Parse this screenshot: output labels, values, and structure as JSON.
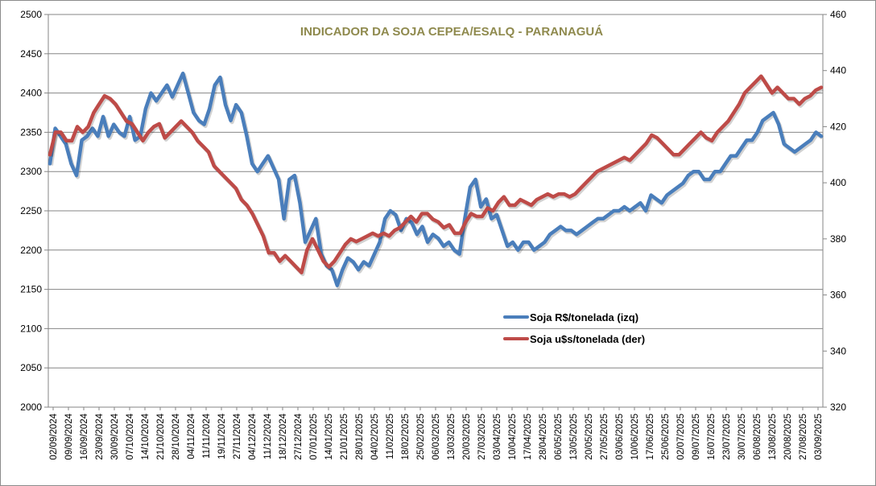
{
  "chart_data": {
    "type": "line",
    "title": "INDICADOR DA SOJA CEPEA/ESALQ - PARANAGUÁ",
    "title_color": "#8f8a4e",
    "y_left": {
      "min": 2000,
      "max": 2500,
      "ticks": [
        2000,
        2050,
        2100,
        2150,
        2200,
        2250,
        2300,
        2350,
        2400,
        2450,
        2500
      ]
    },
    "y_right": {
      "min": 320,
      "max": 460,
      "ticks": [
        320,
        340,
        360,
        380,
        400,
        420,
        440,
        460
      ]
    },
    "grid": "horizontal",
    "legend_position": "center-right",
    "x_tick_labels": [
      "02/09/2024",
      "09/09/2024",
      "16/09/2024",
      "23/09/2024",
      "30/09/2024",
      "07/10/2024",
      "14/10/2024",
      "21/10/2024",
      "28/10/2024",
      "04/11/2024",
      "11/11/2024",
      "19/11/2024",
      "27/11/2024",
      "04/12/2024",
      "11/12/2024",
      "18/12/2024",
      "27/12/2024",
      "07/01/2025",
      "14/01/2025",
      "21/01/2025",
      "28/01/2025",
      "04/02/2025",
      "11/02/2025",
      "18/02/2025",
      "25/02/2025",
      "06/03/2025",
      "13/03/2025",
      "20/03/2025",
      "27/03/2025",
      "03/04/2025",
      "10/04/2025",
      "17/04/2025",
      "28/04/2025",
      "06/05/2025",
      "13/05/2025",
      "20/05/2025",
      "27/05/2025",
      "03/06/2025",
      "10/06/2025",
      "17/06/2025",
      "25/06/2025",
      "02/07/2025",
      "09/07/2025",
      "16/07/2025",
      "23/07/2025",
      "30/07/2025",
      "06/08/2025",
      "13/08/2025",
      "20/08/2025",
      "27/08/2025",
      "03/09/2025"
    ],
    "series": [
      {
        "name": "Soja R$/tonelada (izq)",
        "axis": "left",
        "color": "#4a7ebb",
        "values": [
          2310,
          2355,
          2345,
          2335,
          2310,
          2295,
          2340,
          2345,
          2355,
          2345,
          2370,
          2345,
          2360,
          2350,
          2345,
          2370,
          2340,
          2345,
          2380,
          2400,
          2390,
          2400,
          2410,
          2395,
          2410,
          2425,
          2400,
          2375,
          2365,
          2360,
          2380,
          2410,
          2420,
          2385,
          2365,
          2385,
          2375,
          2345,
          2310,
          2300,
          2310,
          2320,
          2305,
          2290,
          2240,
          2290,
          2295,
          2260,
          2210,
          2225,
          2240,
          2195,
          2180,
          2175,
          2155,
          2175,
          2190,
          2185,
          2175,
          2185,
          2180,
          2195,
          2210,
          2240,
          2250,
          2245,
          2225,
          2240,
          2235,
          2220,
          2230,
          2210,
          2220,
          2215,
          2205,
          2210,
          2200,
          2195,
          2240,
          2280,
          2290,
          2255,
          2265,
          2240,
          2245,
          2225,
          2205,
          2210,
          2200,
          2210,
          2210,
          2200,
          2205,
          2210,
          2220,
          2225,
          2230,
          2225,
          2225,
          2220,
          2225,
          2230,
          2235,
          2240,
          2240,
          2245,
          2250,
          2250,
          2255,
          2250,
          2255,
          2260,
          2250,
          2270,
          2265,
          2260,
          2270,
          2275,
          2280,
          2285,
          2295,
          2300,
          2300,
          2290,
          2290,
          2300,
          2300,
          2310,
          2320,
          2320,
          2330,
          2340,
          2340,
          2350,
          2365,
          2370,
          2375,
          2360,
          2335,
          2330,
          2325,
          2330,
          2335,
          2340,
          2350,
          2345
        ]
      },
      {
        "name": "Soja u$s/tonelada (der)",
        "axis": "right",
        "color": "#be4b48",
        "values": [
          410,
          418,
          418,
          415,
          415,
          420,
          418,
          420,
          425,
          428,
          431,
          430,
          428,
          425,
          422,
          421,
          418,
          415,
          418,
          420,
          421,
          416,
          418,
          420,
          422,
          420,
          418,
          415,
          413,
          411,
          406,
          404,
          402,
          400,
          398,
          394,
          392,
          389,
          385,
          381,
          375,
          375,
          372,
          374,
          372,
          370,
          368,
          376,
          380,
          376,
          372,
          370,
          372,
          375,
          378,
          380,
          379,
          380,
          381,
          382,
          381,
          382,
          381,
          383,
          384,
          386,
          388,
          386,
          389,
          389,
          387,
          386,
          384,
          385,
          382,
          382,
          386,
          389,
          388,
          388,
          391,
          390,
          393,
          395,
          392,
          392,
          394,
          393,
          392,
          394,
          395,
          396,
          395,
          396,
          396,
          395,
          396,
          398,
          400,
          402,
          404,
          405,
          406,
          407,
          408,
          409,
          408,
          410,
          412,
          414,
          417,
          416,
          414,
          412,
          410,
          410,
          412,
          414,
          416,
          418,
          416,
          415,
          418,
          420,
          422,
          425,
          428,
          432,
          434,
          436,
          438,
          435,
          432,
          434,
          432,
          430,
          430,
          428,
          430,
          431,
          433,
          434
        ]
      }
    ]
  }
}
